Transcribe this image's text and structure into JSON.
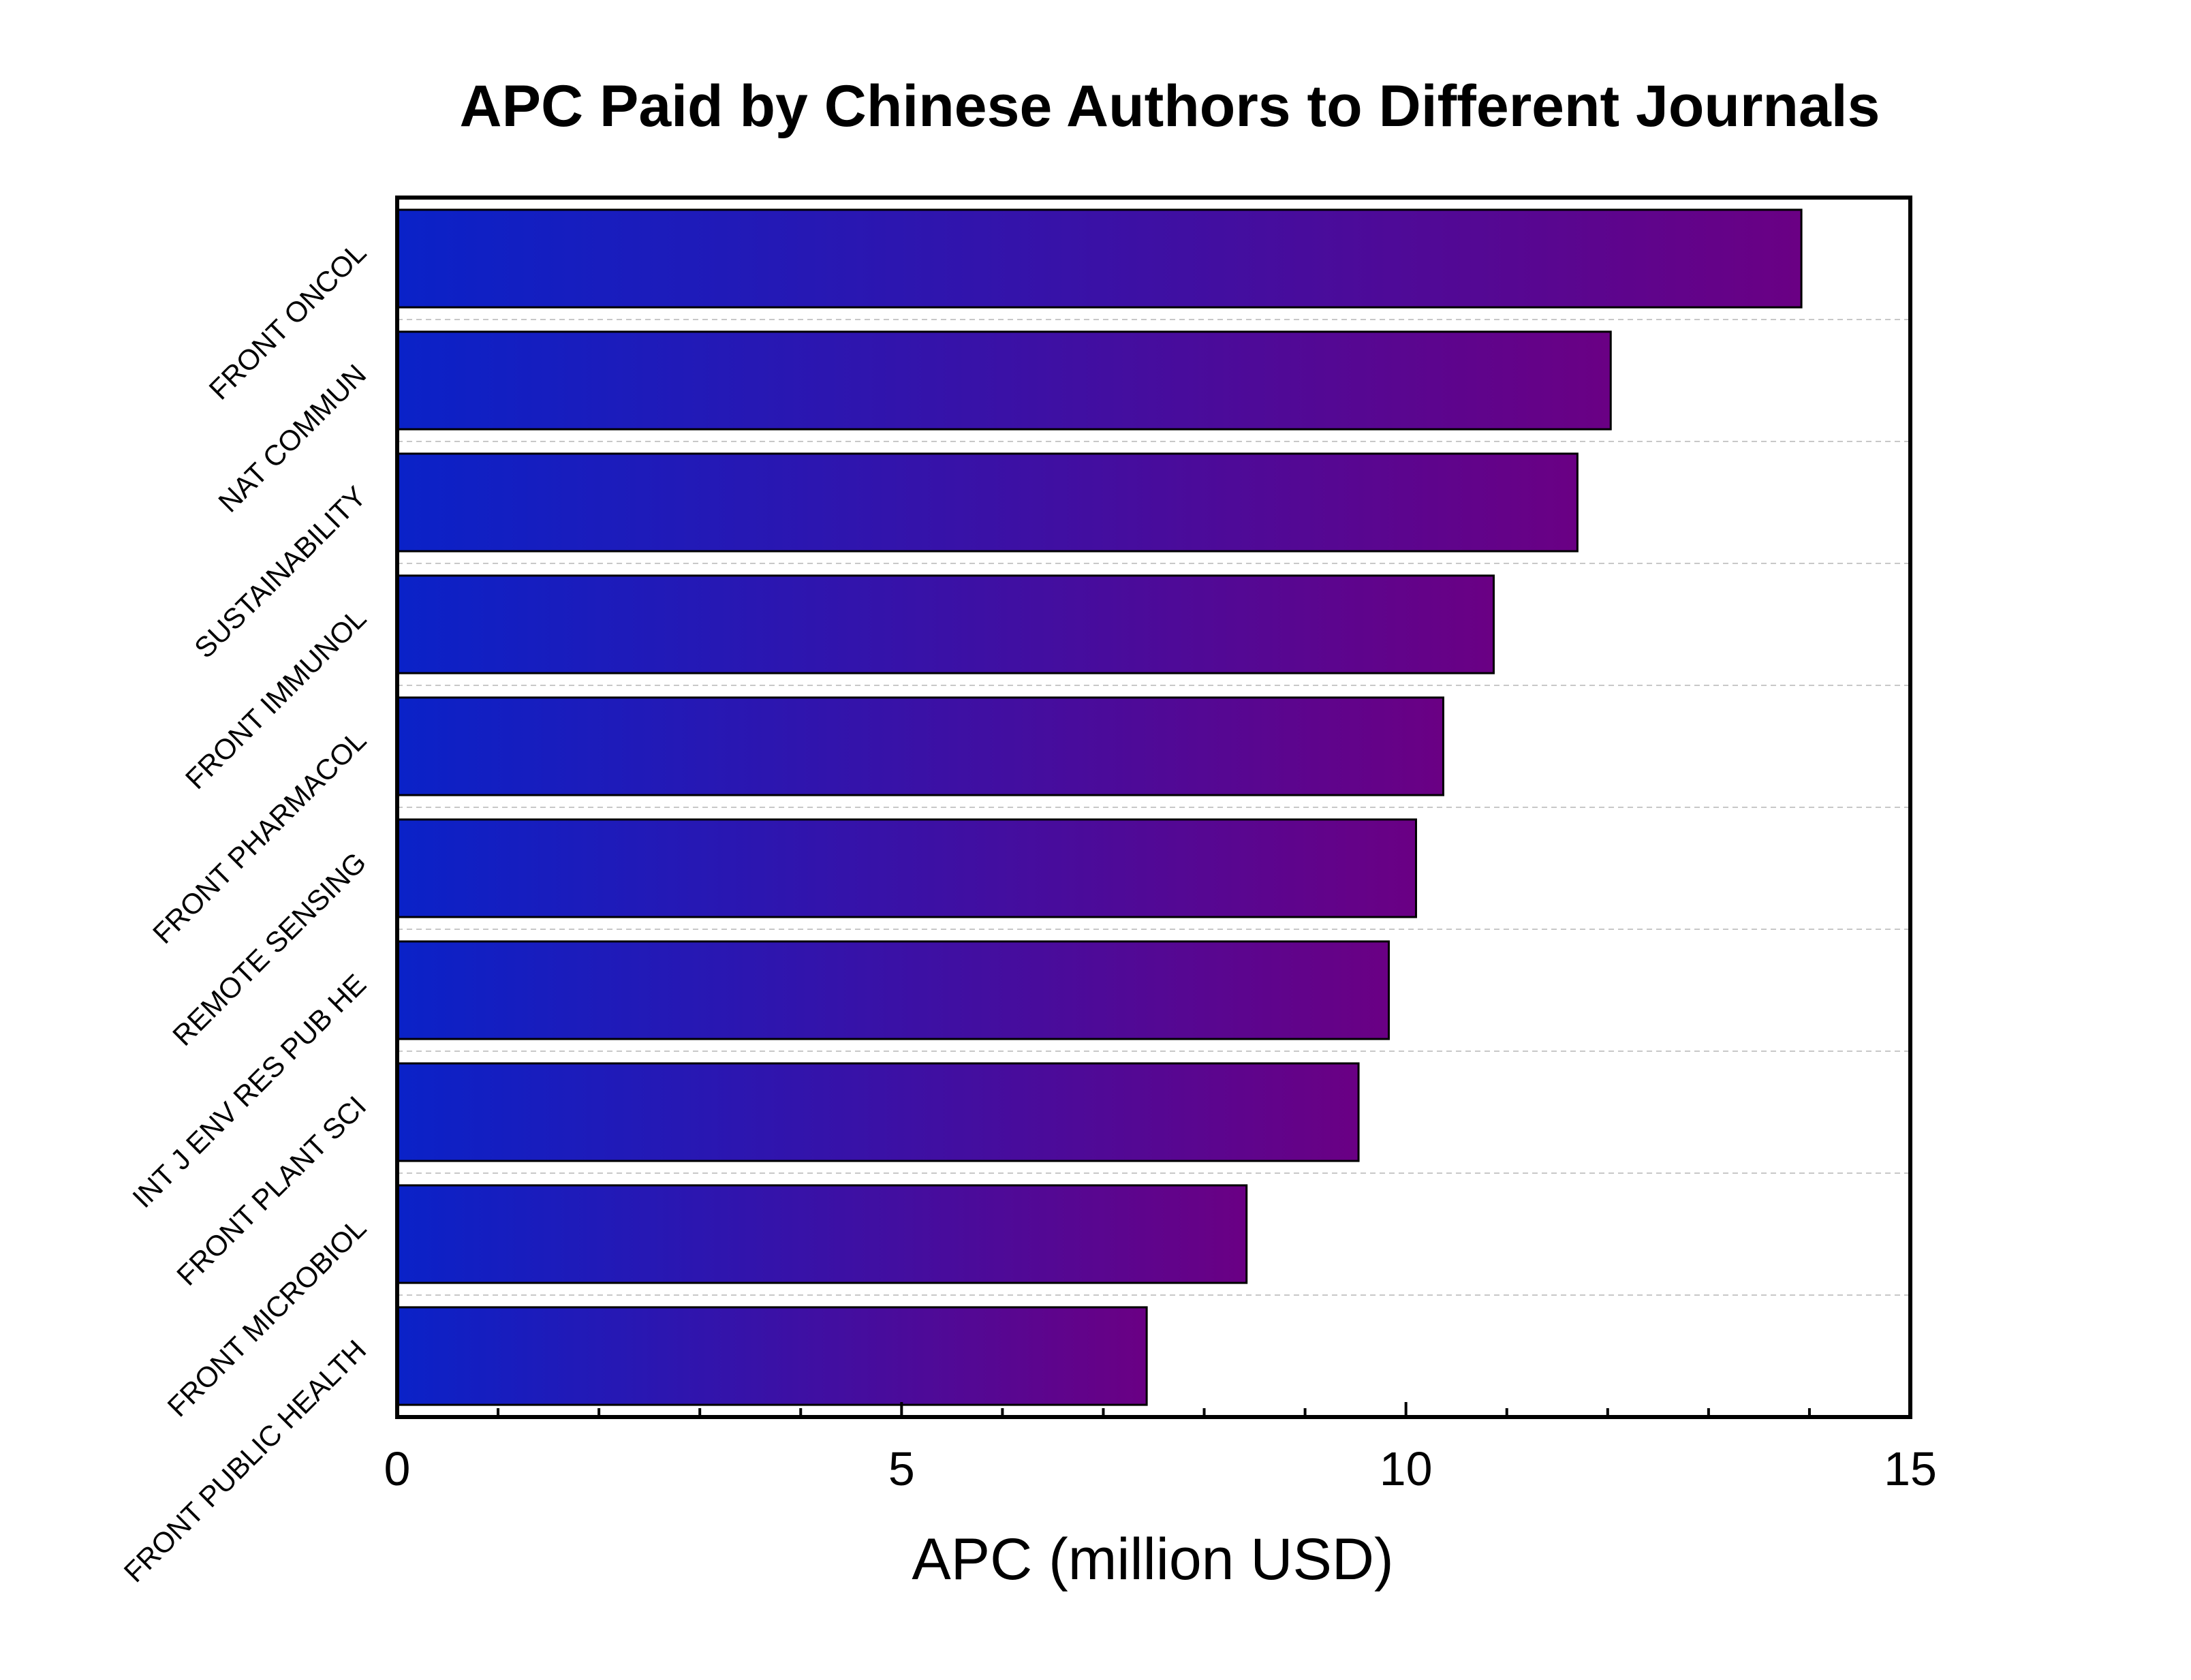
{
  "chart_data": {
    "type": "bar",
    "orientation": "horizontal",
    "title": "APC Paid by Chinese Authors to Different Journals",
    "xlabel": "APC (million USD)",
    "ylabel": "",
    "xlim": [
      0,
      15
    ],
    "x_ticks": [
      "0",
      "5",
      "10",
      "15"
    ],
    "grid": "horizontal dashed",
    "categories": [
      "FRONT ONCOL",
      "NAT COMMUN",
      "SUSTAINABILITY",
      "FRONT IMMUNOL",
      "FRONT PHARMACOL",
      "REMOTE SENSING",
      "INT J ENV RES PUB HE",
      "FRONT PLANT SCI",
      "FRONT MICROBIOL",
      "FRONT PUBLIC HEALTH"
    ],
    "values": [
      13.92,
      12.03,
      11.7,
      10.87,
      10.37,
      10.1,
      9.83,
      9.53,
      8.42,
      7.43
    ],
    "colors": {
      "gradient_start": "#0a22c8",
      "gradient_end": "#6a0084",
      "bar_outline": "#000000"
    }
  }
}
